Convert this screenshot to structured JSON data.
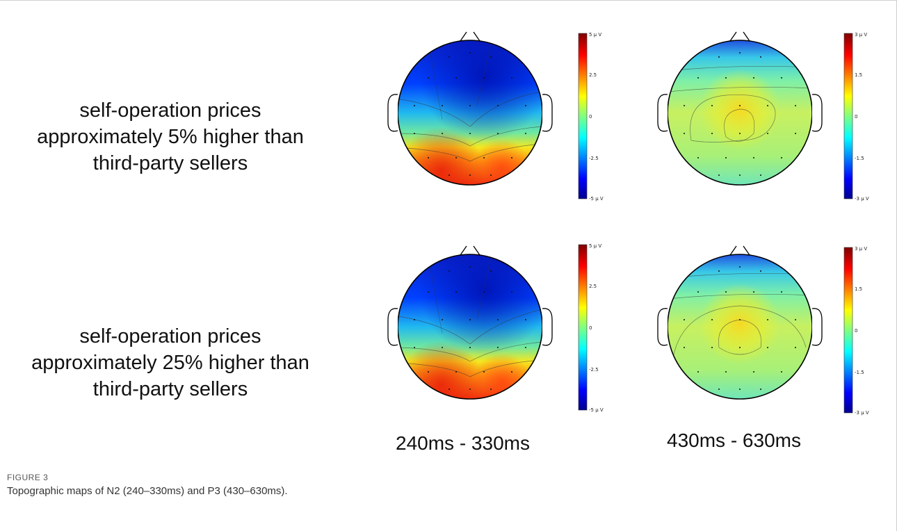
{
  "figure": {
    "label": "FIGURE 3",
    "caption": "Topographic maps of N2 (240–330ms) and P3 (430–630ms)."
  },
  "rows": [
    {
      "lines": [
        "self-operation prices",
        "approximately 5% higher than",
        "third-party sellers"
      ]
    },
    {
      "lines": [
        "self-operation prices",
        "approximately 25% higher than",
        "third-party sellers"
      ]
    }
  ],
  "columns": [
    {
      "label": "240ms - 330ms",
      "component": "N2"
    },
    {
      "label": "430ms - 630ms",
      "component": "P3"
    }
  ],
  "colorbars": {
    "n2": {
      "top": "5 μ V",
      "ticks": [
        "2.5",
        "0",
        "-2.5"
      ],
      "bottom": "-5 μ V"
    },
    "p3": {
      "top": "3 μ V",
      "ticks": [
        "1.5",
        "0",
        "-1.5"
      ],
      "bottom": "-3 μ V"
    }
  },
  "colors": {
    "colormap": "jet",
    "head_outline": "#000000"
  }
}
